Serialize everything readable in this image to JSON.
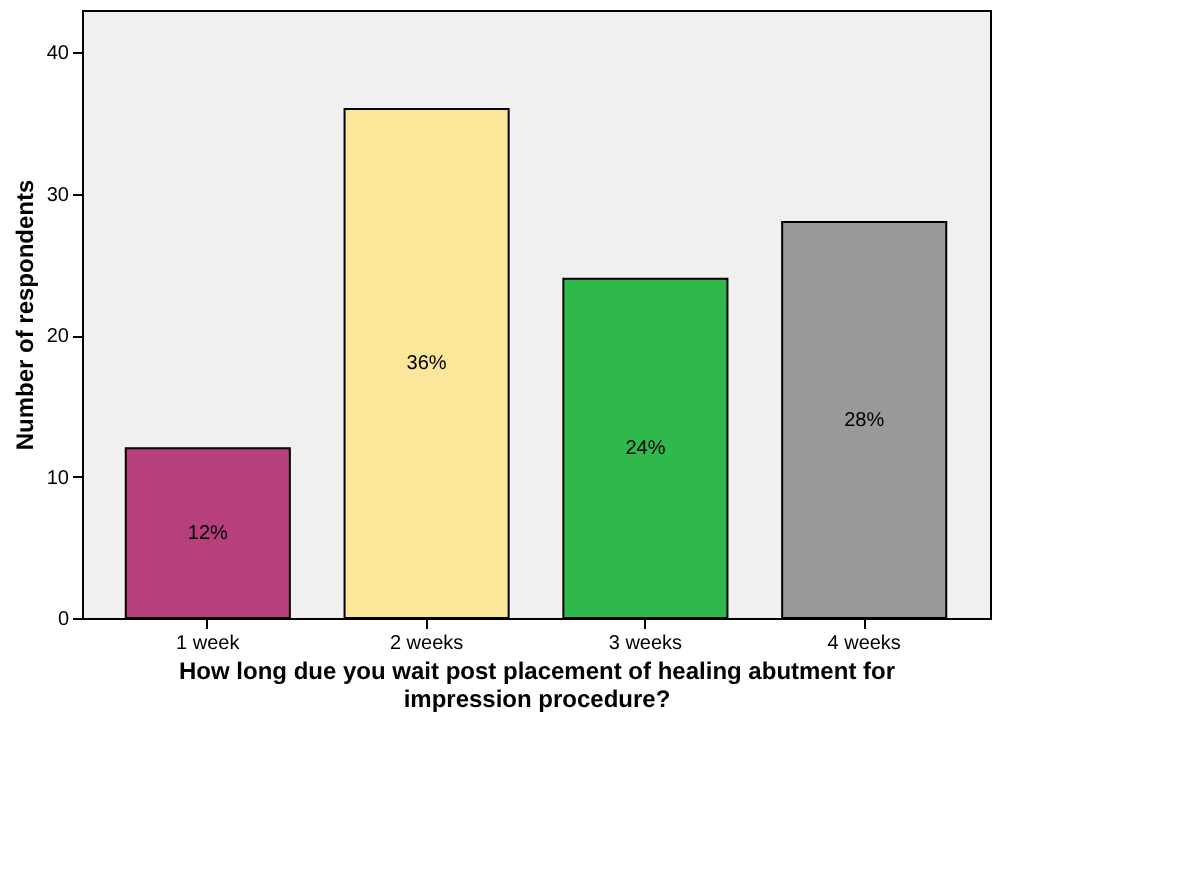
{
  "chart_data": {
    "type": "bar",
    "categories": [
      "1 week",
      "2 weeks",
      "3 weeks",
      "4 weeks"
    ],
    "values": [
      12,
      36,
      24,
      28
    ],
    "colors": [
      "#b5407a",
      "#fbe69a",
      "#2fb84b",
      "#999999"
    ],
    "value_labels": [
      "12%",
      "36%",
      "24%",
      "28%"
    ],
    "xlabel": "How long due you wait post placement of healing abutment for impression procedure?",
    "ylabel": "Number of respondents",
    "ylim": [
      0,
      43
    ],
    "yticks": [
      0,
      10,
      20,
      30,
      40
    ],
    "grid": false,
    "legend": false
  }
}
